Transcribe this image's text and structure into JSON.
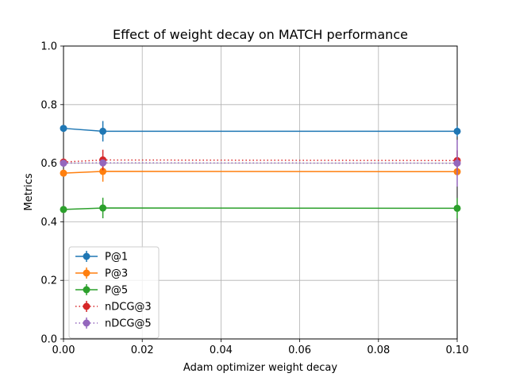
{
  "chart_data": {
    "type": "line",
    "title": "Effect of weight decay on MATCH performance",
    "xlabel": "Adam optimizer weight decay",
    "ylabel": "Metrics",
    "xlim": [
      0.0,
      0.1
    ],
    "ylim": [
      0.0,
      1.0
    ],
    "xticks": [
      "0.00",
      "0.02",
      "0.04",
      "0.06",
      "0.08",
      "0.10"
    ],
    "yticks": [
      "0.0",
      "0.2",
      "0.4",
      "0.6",
      "0.8",
      "1.0"
    ],
    "grid": true,
    "legend_position": "lower-left",
    "x": [
      0.0,
      0.01,
      0.1
    ],
    "series": [
      {
        "name": "P@1",
        "color": "#1f77b4",
        "linestyle": "solid",
        "values": [
          0.719,
          0.709,
          0.709
        ],
        "errors": [
          0.0,
          0.035,
          0.018
        ]
      },
      {
        "name": "P@3",
        "color": "#ff7f0e",
        "linestyle": "solid",
        "values": [
          0.566,
          0.572,
          0.571
        ],
        "errors": [
          0.0,
          0.035,
          0.0
        ]
      },
      {
        "name": "P@5",
        "color": "#2ca02c",
        "linestyle": "solid",
        "values": [
          0.442,
          0.447,
          0.446
        ],
        "errors": [
          0.0,
          0.035,
          0.035
        ]
      },
      {
        "name": "nDCG@3",
        "color": "#d62728",
        "linestyle": "dotted",
        "values": [
          0.604,
          0.611,
          0.609
        ],
        "errors": [
          0.0,
          0.035,
          0.035
        ]
      },
      {
        "name": "nDCG@5",
        "color": "#9467bd",
        "linestyle": "dotted",
        "values": [
          0.6,
          0.601,
          0.6
        ],
        "errors": [
          0.0,
          0.01,
          0.08
        ]
      }
    ]
  }
}
